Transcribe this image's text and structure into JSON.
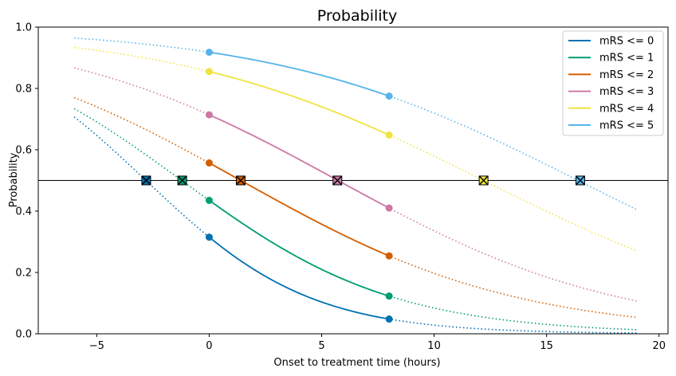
{
  "chart_data": {
    "type": "line",
    "title": "Probability",
    "xlabel": "Onset to treatment time (hours)",
    "ylabel": "Probability",
    "xlim": [
      -7.6,
      20.4
    ],
    "ylim": [
      0.0,
      1.0
    ],
    "xticks": [
      -5,
      0,
      5,
      10,
      15,
      20
    ],
    "yticks": [
      0.0,
      0.2,
      0.4,
      0.6,
      0.8,
      1.0
    ],
    "xtick_labels": [
      "−5",
      "0",
      "5",
      "10",
      "15",
      "20"
    ],
    "ytick_labels": [
      "0.0",
      "0.2",
      "0.4",
      "0.6",
      "0.8",
      "1.0"
    ],
    "grid": false,
    "legend_position": "top-right",
    "threshold_line": 0.5,
    "x_range_full": [
      -6,
      19
    ],
    "x_range_solid": [
      0,
      8
    ],
    "series": [
      {
        "name": "mRS <= 0",
        "color": "#0072b2",
        "p0": 0.315,
        "p8": 0.048,
        "cross_x": -2.8
      },
      {
        "name": "mRS <= 1",
        "color": "#009e73",
        "p0": 0.435,
        "p8": 0.123,
        "cross_x": -1.2
      },
      {
        "name": "mRS <= 2",
        "color": "#d55e00",
        "p0": 0.557,
        "p8": 0.254,
        "cross_x": 1.4
      },
      {
        "name": "mRS <= 3",
        "color": "#cc79a7",
        "p0": 0.714,
        "p8": 0.41,
        "cross_x": 5.7
      },
      {
        "name": "mRS <= 4",
        "color": "#f0e442",
        "p0": 0.855,
        "p8": 0.648,
        "cross_x": 12.2
      },
      {
        "name": "mRS <= 5",
        "color": "#56b4e9",
        "p0": 0.918,
        "p8": 0.775,
        "cross_x": 16.5
      }
    ]
  }
}
